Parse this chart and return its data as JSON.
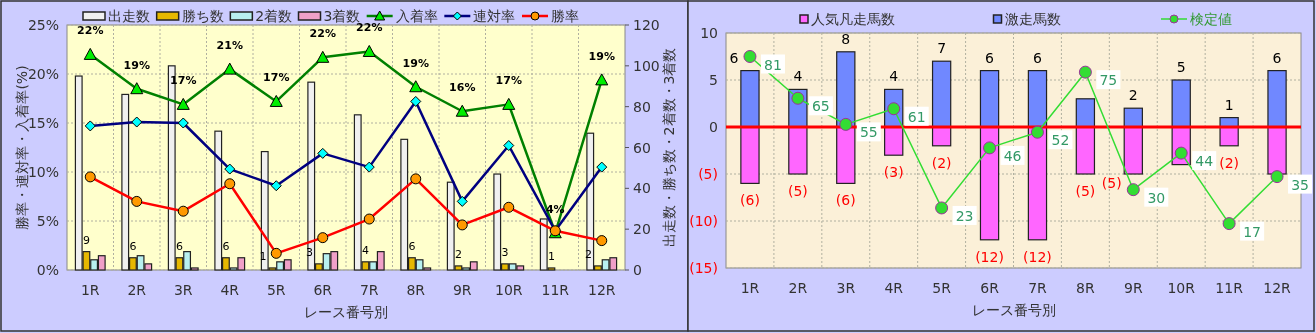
{
  "chart_data": [
    {
      "type": "bar",
      "categories": [
        "1R",
        "2R",
        "3R",
        "4R",
        "5R",
        "6R",
        "7R",
        "8R",
        "9R",
        "10R",
        "11R",
        "12R"
      ],
      "xlabel": "レース番号別",
      "ylabel": "勝率・連対率・入着率(%)",
      "y2label": "出走数・勝ち数・2着数・3着数",
      "ylim": [
        0,
        25
      ],
      "yticks": [
        {
          "value": 0,
          "label": "0%"
        },
        {
          "value": 5,
          "label": "5%"
        },
        {
          "value": 10,
          "label": "10%"
        },
        {
          "value": 15,
          "label": "15%"
        },
        {
          "value": 20,
          "label": "20%"
        },
        {
          "value": 25,
          "label": "25%"
        }
      ],
      "y2lim": [
        0,
        120
      ],
      "y2ticks": [
        0,
        20,
        40,
        60,
        80,
        100,
        120
      ],
      "grid": true,
      "legend": "top",
      "series": [
        {
          "name": "出走数",
          "type": "bar",
          "axis": "y2",
          "color": "#f0f0f0",
          "values": [
            95,
            86,
            100,
            68,
            58,
            92,
            76,
            64,
            43,
            47,
            25,
            67
          ]
        },
        {
          "name": "勝ち数",
          "type": "bar",
          "axis": "y2",
          "color": "#e6b800",
          "values": [
            9,
            6,
            6,
            6,
            1,
            3,
            4,
            6,
            2,
            3,
            1,
            2
          ],
          "value_labels": [
            "9",
            "6",
            "6",
            "6",
            "1",
            "3",
            "4",
            "6",
            "2",
            "3",
            "1",
            "2"
          ]
        },
        {
          "name": "2着数",
          "type": "bar",
          "axis": "y2",
          "color": "#b8f0f0",
          "values": [
            5,
            7,
            9,
            1,
            4,
            8,
            4,
            5,
            1,
            3,
            0,
            5
          ]
        },
        {
          "name": "3着数",
          "type": "bar",
          "axis": "y2",
          "color": "#f0a0c8",
          "values": [
            7,
            3,
            1,
            6,
            5,
            9,
            9,
            1,
            4,
            2,
            0,
            6
          ]
        },
        {
          "name": "入着率",
          "type": "line",
          "color": "#008000",
          "marker": "triangle",
          "values": [
            22.0,
            18.5,
            16.9,
            20.5,
            17.2,
            21.7,
            22.3,
            18.7,
            16.2,
            16.9,
            3.8,
            19.4
          ],
          "value_labels": [
            "22%",
            "19%",
            "17%",
            "21%",
            "17%",
            "22%",
            "22%",
            "19%",
            "16%",
            "17%",
            "4%",
            "19%"
          ]
        },
        {
          "name": "連対率",
          "type": "line",
          "color": "#000080",
          "marker": "diamond",
          "values": [
            14.7,
            15.1,
            15.0,
            10.3,
            8.6,
            11.9,
            10.5,
            17.2,
            7.0,
            12.7,
            4.0,
            10.5
          ]
        },
        {
          "name": "勝率",
          "type": "line",
          "color": "#ff0000",
          "marker": "circle",
          "values": [
            9.5,
            7.0,
            6.0,
            8.8,
            1.7,
            3.3,
            5.2,
            9.3,
            4.6,
            6.4,
            4.0,
            3.0
          ]
        }
      ]
    },
    {
      "type": "bar",
      "stacked": true,
      "categories": [
        "1R",
        "2R",
        "3R",
        "4R",
        "5R",
        "6R",
        "7R",
        "8R",
        "9R",
        "10R",
        "11R",
        "12R"
      ],
      "xlabel": "レース番号別",
      "ylim": [
        -15,
        10
      ],
      "yticks": [
        10,
        5,
        0,
        {
          "value": -5,
          "label": "(5)"
        },
        {
          "value": -10,
          "label": "(10)"
        },
        {
          "value": -15,
          "label": "(15)"
        }
      ],
      "y2lim": [
        0,
        90
      ],
      "grid": true,
      "legend": "top",
      "ref_lines": [
        {
          "axis": "y",
          "value": 0,
          "color": "#ff0000"
        }
      ],
      "series": [
        {
          "name": "人気凡走馬数",
          "type": "bar",
          "color": "#ff66ff",
          "values": [
            -6,
            -5,
            -6,
            -3,
            -2,
            -12,
            -12,
            -5,
            -5,
            -4,
            -2,
            -5
          ],
          "value_labels": [
            "(6)",
            "(5)",
            "(6)",
            "(3)",
            "(2)",
            "(12)",
            "(12)",
            "(5)",
            "(5)",
            null,
            "(2)",
            null
          ]
        },
        {
          "name": "激走馬数",
          "type": "bar",
          "color": "#7088ff",
          "values": [
            6,
            4,
            8,
            4,
            7,
            6,
            6,
            3,
            2,
            5,
            1,
            6
          ],
          "value_labels": [
            "6",
            "4",
            "8",
            "4",
            "7",
            "6",
            "6",
            null,
            "2",
            "5",
            "1",
            "6"
          ]
        },
        {
          "name": "検定値",
          "type": "line",
          "axis": "y2",
          "color": "#33dd33",
          "marker": "circle",
          "values": [
            81,
            65,
            55,
            61,
            23,
            46,
            52,
            75,
            30,
            44,
            17,
            35
          ],
          "value_labels": [
            "81",
            "65",
            "55",
            "61",
            "23",
            "46",
            "52",
            "75",
            "30",
            "44",
            "17",
            "35"
          ]
        }
      ]
    }
  ]
}
